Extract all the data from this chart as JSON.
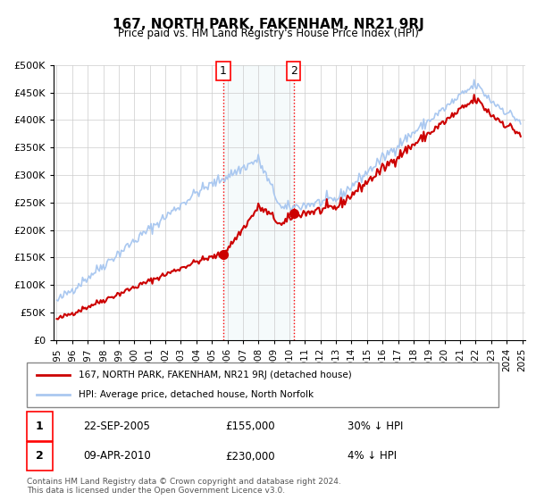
{
  "title": "167, NORTH PARK, FAKENHAM, NR21 9RJ",
  "subtitle": "Price paid vs. HM Land Registry's House Price Index (HPI)",
  "ylabel": "",
  "background_color": "#ffffff",
  "plot_bg_color": "#ffffff",
  "grid_color": "#cccccc",
  "hpi_color": "#aac8f0",
  "price_color": "#cc0000",
  "marker_color": "#cc0000",
  "sale1_date_x": 2005.73,
  "sale1_price": 155000,
  "sale2_date_x": 2010.27,
  "sale2_price": 230000,
  "shade_xmin": 2005.73,
  "shade_xmax": 2010.27,
  "ylim_min": 0,
  "ylim_max": 500000,
  "xlim_min": 1994.8,
  "xlim_max": 2025.2,
  "legend_addr": "167, NORTH PARK, FAKENHAM, NR21 9RJ (detached house)",
  "legend_hpi": "HPI: Average price, detached house, North Norfolk",
  "sale1_label": "1",
  "sale2_label": "2",
  "sale1_info": "22-SEP-2005",
  "sale1_amount": "£155,000",
  "sale1_hpi": "30% ↓ HPI",
  "sale2_info": "09-APR-2010",
  "sale2_amount": "£230,000",
  "sale2_hpi": "4% ↓ HPI",
  "footnote": "Contains HM Land Registry data © Crown copyright and database right 2024.\nThis data is licensed under the Open Government Licence v3.0.",
  "yticks": [
    0,
    50000,
    100000,
    150000,
    200000,
    250000,
    300000,
    350000,
    400000,
    450000,
    500000
  ],
  "ytick_labels": [
    "£0",
    "£50K",
    "£100K",
    "£150K",
    "£200K",
    "£250K",
    "£300K",
    "£350K",
    "£400K",
    "£450K",
    "£500K"
  ],
  "xticks": [
    1995,
    1996,
    1997,
    1998,
    1999,
    2000,
    2001,
    2002,
    2003,
    2004,
    2005,
    2006,
    2007,
    2008,
    2009,
    2010,
    2011,
    2012,
    2013,
    2014,
    2015,
    2016,
    2017,
    2018,
    2019,
    2020,
    2021,
    2022,
    2023,
    2024,
    2025
  ]
}
